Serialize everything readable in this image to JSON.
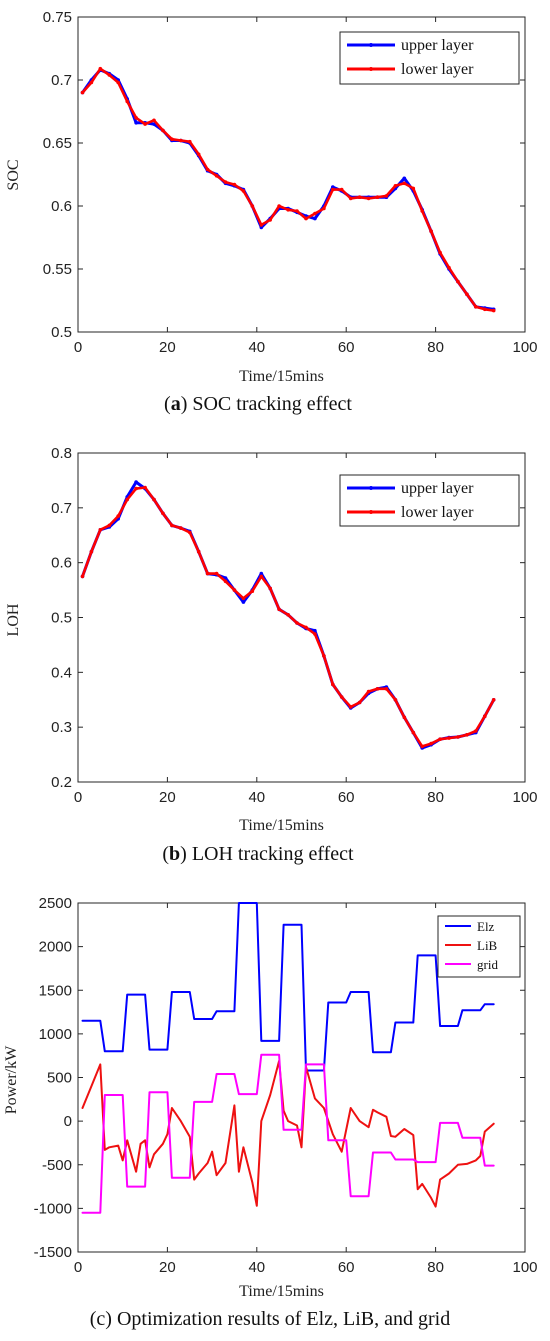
{
  "chart_data": [
    {
      "type": "line",
      "caption_letter": "a",
      "caption_text": " SOC tracking effect",
      "xlabel": "Time/15mins",
      "ylabel": "SOC",
      "xlim": [
        0,
        100
      ],
      "ylim": [
        0.5,
        0.75
      ],
      "xticks": [
        0,
        20,
        40,
        60,
        80,
        100
      ],
      "yticks": [
        0.5,
        0.55,
        0.6,
        0.65,
        0.7,
        0.75
      ],
      "xtick_labels": [
        "0",
        "20",
        "40",
        "60",
        "80",
        "100"
      ],
      "ytick_labels": [
        "0.5",
        "0.55",
        "0.6",
        "0.65",
        "0.7",
        "0.75"
      ],
      "legend_position": "top-right",
      "grid": false,
      "series": [
        {
          "name": "upper layer",
          "color": "#0000ff",
          "x": [
            1,
            3,
            5,
            7,
            9,
            11,
            13,
            15,
            17,
            19,
            21,
            23,
            25,
            27,
            29,
            31,
            33,
            35,
            37,
            39,
            41,
            43,
            45,
            47,
            49,
            51,
            53,
            55,
            57,
            59,
            61,
            63,
            65,
            67,
            69,
            71,
            73,
            75,
            77,
            79,
            81,
            83,
            85,
            87,
            89,
            91,
            93
          ],
          "values": [
            0.69,
            0.7,
            0.708,
            0.705,
            0.7,
            0.685,
            0.666,
            0.666,
            0.665,
            0.66,
            0.652,
            0.652,
            0.65,
            0.64,
            0.628,
            0.625,
            0.618,
            0.616,
            0.613,
            0.6,
            0.583,
            0.59,
            0.598,
            0.598,
            0.595,
            0.592,
            0.59,
            0.6,
            0.615,
            0.612,
            0.607,
            0.607,
            0.607,
            0.607,
            0.607,
            0.614,
            0.622,
            0.612,
            0.597,
            0.58,
            0.562,
            0.55,
            0.54,
            0.53,
            0.52,
            0.519,
            0.518
          ]
        },
        {
          "name": "lower layer",
          "color": "#ff0000",
          "x": [
            1,
            3,
            5,
            7,
            9,
            11,
            13,
            15,
            17,
            19,
            21,
            23,
            25,
            27,
            29,
            31,
            33,
            35,
            37,
            39,
            41,
            43,
            45,
            47,
            49,
            51,
            53,
            55,
            57,
            59,
            61,
            63,
            65,
            67,
            69,
            71,
            73,
            75,
            77,
            79,
            81,
            83,
            85,
            87,
            89,
            91,
            93
          ],
          "values": [
            0.69,
            0.698,
            0.709,
            0.704,
            0.698,
            0.683,
            0.67,
            0.665,
            0.668,
            0.66,
            0.653,
            0.652,
            0.651,
            0.641,
            0.629,
            0.624,
            0.619,
            0.617,
            0.612,
            0.6,
            0.585,
            0.589,
            0.6,
            0.597,
            0.596,
            0.59,
            0.594,
            0.598,
            0.613,
            0.613,
            0.606,
            0.607,
            0.606,
            0.607,
            0.608,
            0.616,
            0.618,
            0.614,
            0.596,
            0.58,
            0.563,
            0.551,
            0.54,
            0.53,
            0.52,
            0.518,
            0.517
          ]
        }
      ]
    },
    {
      "type": "line",
      "caption_letter": "b",
      "caption_text": " LOH tracking effect",
      "xlabel": "Time/15mins",
      "ylabel": "LOH",
      "xlim": [
        0,
        100
      ],
      "ylim": [
        0.2,
        0.8
      ],
      "xticks": [
        0,
        20,
        40,
        60,
        80,
        100
      ],
      "yticks": [
        0.2,
        0.3,
        0.4,
        0.5,
        0.6,
        0.7,
        0.8
      ],
      "xtick_labels": [
        "0",
        "20",
        "40",
        "60",
        "80",
        "100"
      ],
      "ytick_labels": [
        "0.2",
        "0.3",
        "0.4",
        "0.5",
        "0.6",
        "0.7",
        "0.8"
      ],
      "legend_position": "top-right",
      "grid": false,
      "series": [
        {
          "name": "upper layer",
          "color": "#0000ff",
          "x": [
            1,
            3,
            5,
            7,
            9,
            11,
            13,
            15,
            17,
            19,
            21,
            23,
            25,
            27,
            29,
            31,
            33,
            35,
            37,
            39,
            41,
            43,
            45,
            47,
            49,
            51,
            53,
            55,
            57,
            59,
            61,
            63,
            65,
            67,
            69,
            71,
            73,
            75,
            77,
            79,
            81,
            83,
            85,
            87,
            89,
            91,
            93
          ],
          "values": [
            0.575,
            0.62,
            0.66,
            0.665,
            0.68,
            0.72,
            0.747,
            0.735,
            0.715,
            0.69,
            0.668,
            0.663,
            0.657,
            0.62,
            0.58,
            0.578,
            0.572,
            0.55,
            0.528,
            0.55,
            0.58,
            0.553,
            0.515,
            0.505,
            0.49,
            0.48,
            0.476,
            0.43,
            0.378,
            0.355,
            0.335,
            0.345,
            0.362,
            0.37,
            0.373,
            0.35,
            0.318,
            0.29,
            0.262,
            0.268,
            0.278,
            0.281,
            0.282,
            0.286,
            0.29,
            0.32,
            0.35
          ]
        },
        {
          "name": "lower layer",
          "color": "#ff0000",
          "x": [
            1,
            3,
            5,
            7,
            9,
            11,
            13,
            15,
            17,
            19,
            21,
            23,
            25,
            27,
            29,
            31,
            33,
            35,
            37,
            39,
            41,
            43,
            45,
            47,
            49,
            51,
            53,
            55,
            57,
            59,
            61,
            63,
            65,
            67,
            69,
            71,
            73,
            75,
            77,
            79,
            81,
            83,
            85,
            87,
            89,
            91,
            93
          ],
          "values": [
            0.575,
            0.62,
            0.66,
            0.668,
            0.685,
            0.715,
            0.735,
            0.737,
            0.715,
            0.69,
            0.668,
            0.663,
            0.655,
            0.62,
            0.58,
            0.58,
            0.566,
            0.55,
            0.535,
            0.548,
            0.575,
            0.553,
            0.515,
            0.505,
            0.49,
            0.482,
            0.47,
            0.43,
            0.378,
            0.355,
            0.337,
            0.345,
            0.365,
            0.37,
            0.37,
            0.35,
            0.318,
            0.29,
            0.265,
            0.27,
            0.278,
            0.28,
            0.282,
            0.286,
            0.293,
            0.32,
            0.35
          ]
        }
      ]
    },
    {
      "type": "line",
      "caption_letter": "",
      "caption_text": "(c) Optimization results of Elz, LiB, and grid",
      "xlabel": "Time/15mins",
      "ylabel": "Power/kW",
      "xlim": [
        0,
        100
      ],
      "ylim": [
        -1500,
        2500
      ],
      "xticks": [
        0,
        20,
        40,
        60,
        80,
        100
      ],
      "yticks": [
        -1500,
        -1000,
        -500,
        0,
        500,
        1000,
        1500,
        2000,
        2500
      ],
      "xtick_labels": [
        "0",
        "20",
        "40",
        "60",
        "80",
        "100"
      ],
      "ytick_labels": [
        "-1500",
        "-1000",
        "-500",
        "0",
        "500",
        "1000",
        "1500",
        "2000",
        "2500"
      ],
      "legend_position": "top-right",
      "grid": false,
      "series": [
        {
          "name": "Elz",
          "color": "#0000ff",
          "x": [
            1,
            2,
            3,
            4,
            5,
            6,
            7,
            8,
            9,
            10,
            11,
            12,
            13,
            14,
            15,
            16,
            17,
            18,
            19,
            20,
            21,
            22,
            23,
            24,
            25,
            26,
            27,
            28,
            29,
            30,
            31,
            32,
            33,
            34,
            35,
            36,
            37,
            38,
            39,
            40,
            41,
            42,
            43,
            44,
            45,
            46,
            47,
            48,
            49,
            50,
            51,
            52,
            53,
            54,
            55,
            56,
            57,
            58,
            59,
            60,
            61,
            62,
            63,
            64,
            65,
            66,
            67,
            68,
            69,
            70,
            71,
            72,
            73,
            74,
            75,
            76,
            77,
            78,
            79,
            80,
            81,
            82,
            83,
            84,
            85,
            86,
            87,
            88,
            89,
            90,
            91,
            92,
            93
          ],
          "values": [
            1150,
            1150,
            1150,
            1150,
            1150,
            800,
            800,
            800,
            800,
            800,
            1450,
            1450,
            1450,
            1450,
            1450,
            820,
            820,
            820,
            820,
            820,
            1480,
            1480,
            1480,
            1480,
            1480,
            1170,
            1170,
            1170,
            1170,
            1170,
            1260,
            1260,
            1260,
            1260,
            1260,
            2500,
            2500,
            2500,
            2500,
            2500,
            920,
            920,
            920,
            920,
            920,
            2250,
            2250,
            2250,
            2250,
            2250,
            580,
            580,
            580,
            580,
            580,
            1360,
            1360,
            1360,
            1360,
            1360,
            1480,
            1480,
            1480,
            1480,
            1480,
            790,
            790,
            790,
            790,
            790,
            1130,
            1130,
            1130,
            1130,
            1130,
            1900,
            1900,
            1900,
            1900,
            1900,
            1090,
            1090,
            1090,
            1090,
            1090,
            1270,
            1270,
            1270,
            1270,
            1270,
            1340,
            1340,
            1340
          ]
        },
        {
          "name": "LiB",
          "color": "#ee1111",
          "x": [
            1,
            3,
            5,
            6,
            7,
            9,
            10,
            11,
            13,
            14,
            15,
            16,
            17,
            19,
            20,
            21,
            23,
            25,
            26,
            27,
            29,
            30,
            31,
            33,
            35,
            36,
            37,
            39,
            40,
            41,
            43,
            45,
            46,
            47,
            49,
            50,
            51,
            53,
            55,
            57,
            59,
            61,
            63,
            65,
            66,
            67,
            69,
            70,
            71,
            73,
            75,
            76,
            77,
            79,
            80,
            81,
            83,
            85,
            87,
            89,
            90,
            91,
            93
          ],
          "values": [
            150,
            400,
            650,
            -330,
            -300,
            -280,
            -450,
            -220,
            -580,
            -260,
            -220,
            -530,
            -380,
            -260,
            -150,
            150,
            0,
            -180,
            -670,
            -600,
            -480,
            -350,
            -620,
            -480,
            180,
            -580,
            -300,
            -700,
            -970,
            0,
            300,
            690,
            120,
            0,
            -50,
            -300,
            620,
            260,
            150,
            -150,
            -350,
            150,
            0,
            -70,
            130,
            100,
            50,
            -170,
            -180,
            -90,
            -160,
            -780,
            -720,
            -880,
            -980,
            -670,
            -600,
            -500,
            -490,
            -450,
            -400,
            -120,
            -30
          ]
        },
        {
          "name": "grid",
          "color": "#ff00ff",
          "x": [
            1,
            2,
            3,
            4,
            5,
            6,
            7,
            8,
            9,
            10,
            11,
            12,
            13,
            14,
            15,
            16,
            17,
            18,
            19,
            20,
            21,
            22,
            23,
            24,
            25,
            26,
            27,
            28,
            29,
            30,
            31,
            32,
            33,
            34,
            35,
            36,
            37,
            38,
            39,
            40,
            41,
            42,
            43,
            44,
            45,
            46,
            47,
            48,
            49,
            50,
            51,
            52,
            53,
            54,
            55,
            56,
            57,
            58,
            59,
            60,
            61,
            62,
            63,
            64,
            65,
            66,
            67,
            68,
            69,
            70,
            71,
            72,
            73,
            74,
            75,
            76,
            77,
            78,
            79,
            80,
            81,
            82,
            83,
            84,
            85,
            86,
            87,
            88,
            89,
            90,
            91,
            92,
            93
          ],
          "values": [
            -1050,
            -1050,
            -1050,
            -1050,
            -1050,
            300,
            300,
            300,
            300,
            300,
            -750,
            -750,
            -750,
            -750,
            -750,
            330,
            330,
            330,
            330,
            330,
            -650,
            -650,
            -650,
            -650,
            -650,
            220,
            220,
            220,
            220,
            220,
            540,
            540,
            540,
            540,
            540,
            310,
            310,
            310,
            310,
            310,
            760,
            760,
            760,
            760,
            760,
            -100,
            -100,
            -100,
            -100,
            -100,
            650,
            650,
            650,
            650,
            650,
            -220,
            -220,
            -220,
            -220,
            -220,
            -860,
            -860,
            -860,
            -860,
            -860,
            -360,
            -360,
            -360,
            -360,
            -360,
            -440,
            -440,
            -440,
            -440,
            -440,
            -470,
            -470,
            -470,
            -470,
            -470,
            -20,
            -20,
            -20,
            -20,
            -20,
            -190,
            -190,
            -190,
            -190,
            -190,
            -510,
            -510,
            -510
          ]
        }
      ]
    }
  ]
}
